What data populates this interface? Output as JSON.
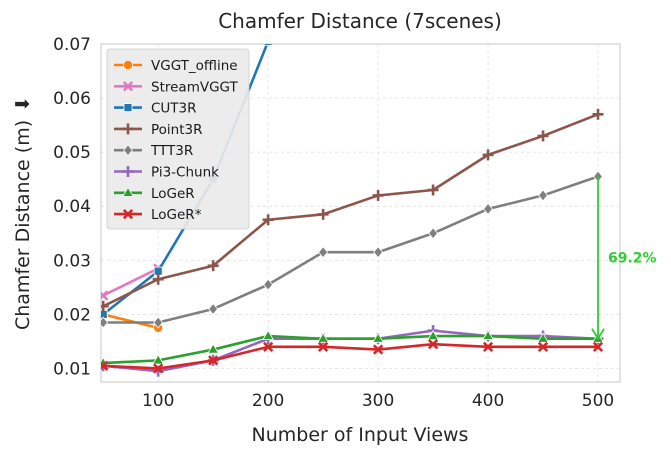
{
  "chart_data": {
    "type": "line",
    "title": "Chamfer Distance (7scenes)",
    "xlabel": "Number of Input Views",
    "ylabel": "Chamfer Distance (m)",
    "ylabel_arrow": "⬇",
    "xlim": [
      48,
      520
    ],
    "ylim": [
      0.0075,
      0.07
    ],
    "xticks": [
      100,
      200,
      300,
      400,
      500
    ],
    "yticks": [
      0.01,
      0.02,
      0.03,
      0.04,
      0.05,
      0.06,
      0.07
    ],
    "ytick_labels": [
      "0.01",
      "0.02",
      "0.03",
      "0.04",
      "0.05",
      "0.06",
      "0.07"
    ],
    "grid": true,
    "legend_position": "top-left",
    "series": [
      {
        "name": "VGGT_offline",
        "color": "#ff7f0e",
        "marker": "circle",
        "x": [
          50,
          100
        ],
        "y": [
          0.02,
          0.0175
        ]
      },
      {
        "name": "StreamVGGT",
        "color": "#e377c2",
        "marker": "x",
        "x": [
          50,
          100
        ],
        "y": [
          0.0235,
          0.0285
        ]
      },
      {
        "name": "CUT3R",
        "color": "#1f77b4",
        "marker": "square",
        "x": [
          50,
          100,
          150,
          200
        ],
        "y": [
          0.02,
          0.028,
          0.045,
          0.0705
        ]
      },
      {
        "name": "Point3R",
        "color": "#8c564b",
        "marker": "plus",
        "x": [
          50,
          100,
          150,
          200,
          250,
          300,
          350,
          400,
          450,
          500
        ],
        "y": [
          0.0215,
          0.0265,
          0.029,
          0.0375,
          0.0385,
          0.042,
          0.043,
          0.0495,
          0.053,
          0.057
        ]
      },
      {
        "name": "TTT3R",
        "color": "#7f7f7f",
        "marker": "diamond",
        "x": [
          50,
          100,
          150,
          200,
          250,
          300,
          350,
          400,
          450,
          500
        ],
        "y": [
          0.0185,
          0.0185,
          0.021,
          0.0255,
          0.0315,
          0.0315,
          0.035,
          0.0395,
          0.042,
          0.0455
        ]
      },
      {
        "name": "Pi3-Chunk",
        "color": "#9467bd",
        "marker": "plus",
        "x": [
          50,
          100,
          150,
          200,
          250,
          300,
          350,
          400,
          450,
          500
        ],
        "y": [
          0.0105,
          0.0095,
          0.0115,
          0.0155,
          0.0155,
          0.0155,
          0.017,
          0.016,
          0.016,
          0.0155
        ]
      },
      {
        "name": "LoGeR",
        "color": "#2ca02c",
        "marker": "triangle",
        "x": [
          50,
          100,
          150,
          200,
          250,
          300,
          350,
          400,
          450,
          500
        ],
        "y": [
          0.011,
          0.0115,
          0.0135,
          0.016,
          0.0155,
          0.0155,
          0.016,
          0.016,
          0.0155,
          0.0155
        ]
      },
      {
        "name": "LoGeR*",
        "color": "#d62728",
        "marker": "x",
        "x": [
          50,
          100,
          150,
          200,
          250,
          300,
          350,
          400,
          450,
          500
        ],
        "y": [
          0.0105,
          0.01,
          0.0115,
          0.014,
          0.014,
          0.0135,
          0.0145,
          0.014,
          0.014,
          0.014
        ]
      }
    ],
    "annotations": [
      {
        "text": "69.2%",
        "color": "#33cc33",
        "arrow_x": 500,
        "arrow_from_y": 0.0455,
        "arrow_to_y": 0.0155
      }
    ]
  }
}
